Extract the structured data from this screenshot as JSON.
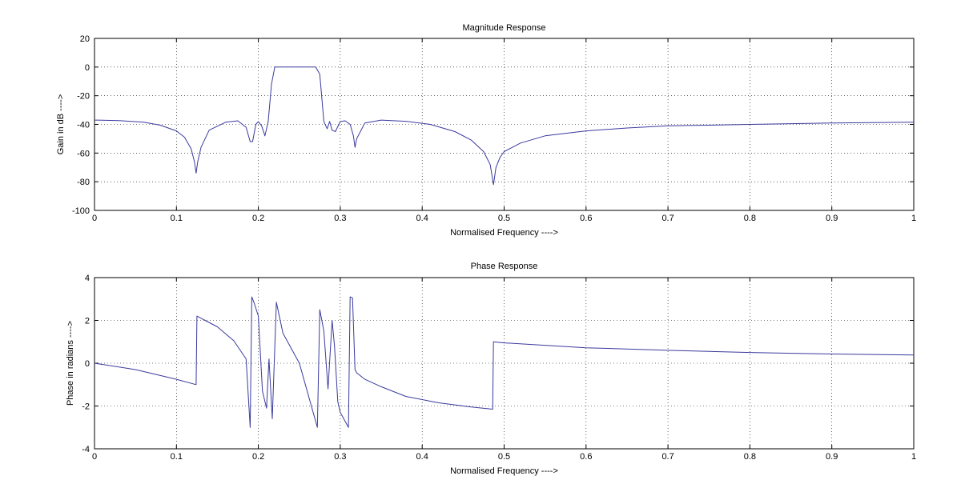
{
  "chart_data": [
    {
      "type": "line",
      "title": "Magnitude Response",
      "xlabel": "Normalised Frequency ---->",
      "ylabel": "Gain in dB ---->",
      "xlim": [
        0,
        1
      ],
      "ylim": [
        -100,
        20
      ],
      "xticks": [
        0,
        0.1,
        0.2,
        0.3,
        0.4,
        0.5,
        0.6,
        0.7,
        0.8,
        0.9,
        1
      ],
      "xtick_labels": [
        "0",
        "0.1",
        "0.2",
        "0.3",
        "0.4",
        "0.5",
        "0.6",
        "0.7",
        "0.8",
        "0.9",
        "1"
      ],
      "yticks": [
        -100,
        -80,
        -60,
        -40,
        -20,
        0,
        20
      ],
      "ytick_labels": [
        "-100",
        "-80",
        "-60",
        "-40",
        "-20",
        "0",
        "20"
      ],
      "grid": true,
      "color": "#3a3a9e",
      "series": [
        {
          "x": [
            0,
            0.03,
            0.06,
            0.08,
            0.1,
            0.11,
            0.118,
            0.122,
            0.124,
            0.126,
            0.13,
            0.14,
            0.16,
            0.175,
            0.185,
            0.19,
            0.193,
            0.197,
            0.2,
            0.204,
            0.208,
            0.212,
            0.216,
            0.22,
            0.23,
            0.25,
            0.27,
            0.275,
            0.278,
            0.28,
            0.284,
            0.287,
            0.29,
            0.294,
            0.3,
            0.306,
            0.312,
            0.316,
            0.318,
            0.32,
            0.33,
            0.35,
            0.38,
            0.41,
            0.44,
            0.46,
            0.475,
            0.483,
            0.487,
            0.49,
            0.495,
            0.5,
            0.52,
            0.55,
            0.6,
            0.65,
            0.7,
            0.8,
            0.9,
            1
          ],
          "y": [
            -37,
            -37.3,
            -38.5,
            -40.5,
            -44.5,
            -49,
            -57,
            -66,
            -74,
            -66,
            -56,
            -44,
            -38.5,
            -37.5,
            -42,
            -52,
            -52,
            -40,
            -38,
            -41,
            -48,
            -38,
            -12,
            0,
            0,
            0,
            0,
            -5,
            -25,
            -38,
            -43,
            -38,
            -44,
            -45,
            -38,
            -37.5,
            -40,
            -48,
            -56,
            -50,
            -39,
            -37,
            -37.8,
            -40,
            -45,
            -51,
            -59,
            -68,
            -82,
            -70,
            -63,
            -59,
            -53,
            -48,
            -44.5,
            -42.5,
            -41,
            -40,
            -39,
            -38.5
          ]
        }
      ]
    },
    {
      "type": "line",
      "title": "Phase Response",
      "xlabel": "Normalised Frequency ---->",
      "ylabel": "Phase in radians ---->",
      "xlim": [
        0,
        1
      ],
      "ylim": [
        -4,
        4
      ],
      "xticks": [
        0,
        0.1,
        0.2,
        0.3,
        0.4,
        0.5,
        0.6,
        0.7,
        0.8,
        0.9,
        1
      ],
      "xtick_labels": [
        "0",
        "0.1",
        "0.2",
        "0.3",
        "0.4",
        "0.5",
        "0.6",
        "0.7",
        "0.8",
        "0.9",
        "1"
      ],
      "yticks": [
        -4,
        -2,
        0,
        2,
        4
      ],
      "ytick_labels": [
        "-4",
        "-2",
        "0",
        "2",
        "4"
      ],
      "grid": true,
      "color": "#3a3a9e",
      "series": [
        {
          "x": [
            0,
            0.05,
            0.1,
            0.124,
            0.125,
            0.13,
            0.15,
            0.17,
            0.185,
            0.19,
            0.192,
            0.195,
            0.2,
            0.205,
            0.21,
            0.213,
            0.217,
            0.222,
            0.225,
            0.23,
            0.25,
            0.272,
            0.275,
            0.28,
            0.285,
            0.29,
            0.293,
            0.297,
            0.3,
            0.31,
            0.312,
            0.315,
            0.318,
            0.32,
            0.33,
            0.35,
            0.38,
            0.42,
            0.46,
            0.486,
            0.487,
            0.5,
            0.6,
            0.7,
            0.8,
            0.9,
            1
          ],
          "y": [
            0,
            -0.3,
            -0.75,
            -1,
            2.2,
            2.1,
            1.7,
            1.05,
            0.2,
            -3,
            3.1,
            2.8,
            2.2,
            -1.3,
            -2.1,
            0.2,
            -2.6,
            2.85,
            2.3,
            1.4,
            0,
            -3,
            2.5,
            1.5,
            -1.2,
            2,
            0.8,
            -1.8,
            -2.3,
            -3,
            3.1,
            3.05,
            -0.3,
            -0.45,
            -0.75,
            -1.1,
            -1.55,
            -1.85,
            -2.05,
            -2.15,
            1,
            0.95,
            0.72,
            0.6,
            0.5,
            0.43,
            0.38
          ]
        }
      ]
    }
  ]
}
